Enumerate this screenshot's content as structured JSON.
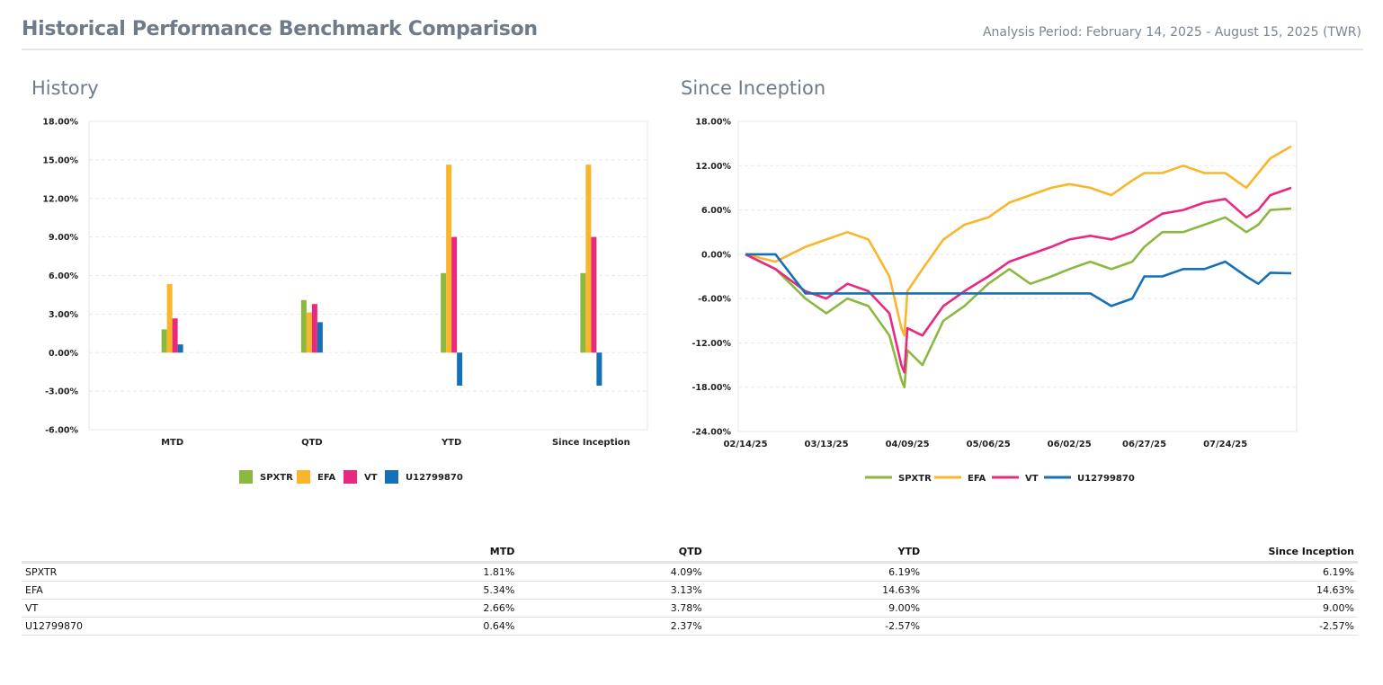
{
  "header": {
    "title": "Historical Performance Benchmark Comparison",
    "period": "Analysis Period: February 14, 2025 - August 15, 2025 (TWR)"
  },
  "colors": {
    "SPXTR": "#8cb83f",
    "EFA": "#fbb52b",
    "VT": "#e9297f",
    "U12799870": "#1670b8"
  },
  "chart_data": [
    {
      "title": "History",
      "type": "bar",
      "categories": [
        "MTD",
        "QTD",
        "YTD",
        "Since Inception"
      ],
      "series": [
        {
          "name": "SPXTR",
          "values": [
            1.81,
            4.09,
            6.19,
            6.19
          ]
        },
        {
          "name": "EFA",
          "values": [
            5.34,
            3.13,
            14.63,
            14.63
          ]
        },
        {
          "name": "VT",
          "values": [
            2.66,
            3.78,
            9.0,
            9.0
          ]
        },
        {
          "name": "U12799870",
          "values": [
            0.64,
            2.37,
            -2.57,
            -2.57
          ]
        }
      ],
      "ylim": [
        -6,
        18
      ],
      "yticks": [
        "18.00%",
        "15.00%",
        "12.00%",
        "9.00%",
        "6.00%",
        "3.00%",
        "0.00%",
        "-3.00%",
        "-6.00%"
      ],
      "grid": true,
      "legend": "bottom"
    },
    {
      "title": "Since Inception",
      "type": "line",
      "x": [
        "02/14/25",
        "02/24/25",
        "03/06/25",
        "03/13/25",
        "03/20/25",
        "03/27/25",
        "04/03/25",
        "04/07/25",
        "04/08/25",
        "04/09/25",
        "04/14/25",
        "04/21/25",
        "04/28/25",
        "05/06/25",
        "05/13/25",
        "05/20/25",
        "05/27/25",
        "06/02/25",
        "06/09/25",
        "06/16/25",
        "06/23/25",
        "06/27/25",
        "07/03/25",
        "07/10/25",
        "07/17/25",
        "07/24/25",
        "07/31/25",
        "08/04/25",
        "08/08/25",
        "08/15/25"
      ],
      "series": [
        {
          "name": "SPXTR",
          "values": [
            0,
            -2,
            -6,
            -8,
            -6,
            -7,
            -11,
            -17,
            -18,
            -13,
            -15,
            -9,
            -7,
            -4,
            -2,
            -4,
            -3,
            -2,
            -1,
            -2,
            -1,
            1,
            3,
            3,
            4,
            5,
            3,
            4,
            6,
            6.19
          ]
        },
        {
          "name": "EFA",
          "values": [
            0,
            -1,
            1,
            2,
            3,
            2,
            -3,
            -10,
            -11,
            -5,
            -2,
            2,
            4,
            5,
            7,
            8,
            9,
            9.5,
            9,
            8,
            10,
            11,
            11,
            12,
            11,
            11,
            9,
            11,
            13,
            14.63
          ]
        },
        {
          "name": "VT",
          "values": [
            0,
            -2,
            -5,
            -6,
            -4,
            -5,
            -8,
            -15,
            -16,
            -10,
            -11,
            -7,
            -5,
            -3,
            -1,
            0,
            1,
            2,
            2.5,
            2,
            3,
            4,
            5.5,
            6,
            7,
            7.5,
            5,
            6,
            8,
            9.0
          ]
        },
        {
          "name": "U12799870",
          "values": [
            0,
            0,
            -5.3,
            -5.3,
            -5.3,
            -5.3,
            -5.3,
            -5.3,
            -5.3,
            -5.3,
            -5.3,
            -5.3,
            -5.3,
            -5.3,
            -5.3,
            -5.3,
            -5.3,
            -5.3,
            -5.3,
            -7,
            -6,
            -3,
            -3,
            -2,
            -2,
            -1,
            -3,
            -4,
            -2.5,
            -2.57
          ]
        }
      ],
      "ylim": [
        -24,
        18
      ],
      "yticks": [
        "18.00%",
        "12.00%",
        "6.00%",
        "0.00%",
        "-6.00%",
        "-12.00%",
        "-18.00%",
        "-24.00%"
      ],
      "xticks": [
        "02/14/25",
        "03/13/25",
        "04/09/25",
        "05/06/25",
        "06/02/25",
        "06/27/25",
        "07/24/25"
      ],
      "grid": true,
      "legend": "bottom"
    }
  ],
  "table": {
    "headers": [
      "",
      "MTD",
      "QTD",
      "YTD",
      "Since Inception"
    ],
    "rows": [
      [
        "SPXTR",
        "1.81%",
        "4.09%",
        "6.19%",
        "6.19%"
      ],
      [
        "EFA",
        "5.34%",
        "3.13%",
        "14.63%",
        "14.63%"
      ],
      [
        "VT",
        "2.66%",
        "3.78%",
        "9.00%",
        "9.00%"
      ],
      [
        "U12799870",
        "0.64%",
        "2.37%",
        "-2.57%",
        "-2.57%"
      ]
    ]
  }
}
